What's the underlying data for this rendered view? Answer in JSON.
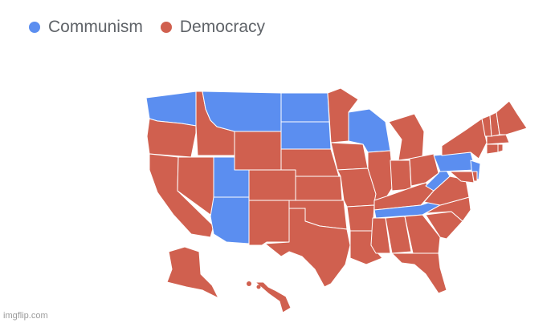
{
  "legend": [
    {
      "label": "Communism",
      "color": "#5b8ef0"
    },
    {
      "label": "Democracy",
      "color": "#d0604f"
    }
  ],
  "watermark": "imgflip.com",
  "map": {
    "states": [
      {
        "name": "WA",
        "category": "Communism"
      },
      {
        "name": "OR",
        "category": "Democracy"
      },
      {
        "name": "CA",
        "category": "Democracy"
      },
      {
        "name": "ID",
        "category": "Democracy"
      },
      {
        "name": "NV",
        "category": "Democracy"
      },
      {
        "name": "MT",
        "category": "Communism"
      },
      {
        "name": "WY",
        "category": "Democracy"
      },
      {
        "name": "UT",
        "category": "Communism"
      },
      {
        "name": "AZ",
        "category": "Communism"
      },
      {
        "name": "CO",
        "category": "Democracy"
      },
      {
        "name": "NM",
        "category": "Democracy"
      },
      {
        "name": "ND",
        "category": "Communism"
      },
      {
        "name": "SD",
        "category": "Communism"
      },
      {
        "name": "NE",
        "category": "Democracy"
      },
      {
        "name": "KS",
        "category": "Democracy"
      },
      {
        "name": "OK",
        "category": "Democracy"
      },
      {
        "name": "TX",
        "category": "Democracy"
      },
      {
        "name": "MN",
        "category": "Democracy"
      },
      {
        "name": "IA",
        "category": "Democracy"
      },
      {
        "name": "MO",
        "category": "Democracy"
      },
      {
        "name": "AR",
        "category": "Democracy"
      },
      {
        "name": "LA",
        "category": "Democracy"
      },
      {
        "name": "WI",
        "category": "Communism"
      },
      {
        "name": "IL",
        "category": "Democracy"
      },
      {
        "name": "MI",
        "category": "Democracy"
      },
      {
        "name": "IN",
        "category": "Democracy"
      },
      {
        "name": "OH",
        "category": "Democracy"
      },
      {
        "name": "KY",
        "category": "Democracy"
      },
      {
        "name": "TN",
        "category": "Communism"
      },
      {
        "name": "MS",
        "category": "Democracy"
      },
      {
        "name": "AL",
        "category": "Democracy"
      },
      {
        "name": "GA",
        "category": "Democracy"
      },
      {
        "name": "FL",
        "category": "Democracy"
      },
      {
        "name": "SC",
        "category": "Democracy"
      },
      {
        "name": "NC",
        "category": "Democracy"
      },
      {
        "name": "VA",
        "category": "Democracy"
      },
      {
        "name": "WV",
        "category": "Communism"
      },
      {
        "name": "PA",
        "category": "Communism"
      },
      {
        "name": "NY",
        "category": "Democracy"
      },
      {
        "name": "NJ",
        "category": "Communism"
      },
      {
        "name": "MD",
        "category": "Democracy"
      },
      {
        "name": "DE",
        "category": "Democracy"
      },
      {
        "name": "CT",
        "category": "Democracy"
      },
      {
        "name": "RI",
        "category": "Democracy"
      },
      {
        "name": "MA",
        "category": "Democracy"
      },
      {
        "name": "VT",
        "category": "Democracy"
      },
      {
        "name": "NH",
        "category": "Democracy"
      },
      {
        "name": "ME",
        "category": "Democracy"
      },
      {
        "name": "AK",
        "category": "Democracy"
      },
      {
        "name": "HI",
        "category": "Democracy"
      }
    ]
  }
}
